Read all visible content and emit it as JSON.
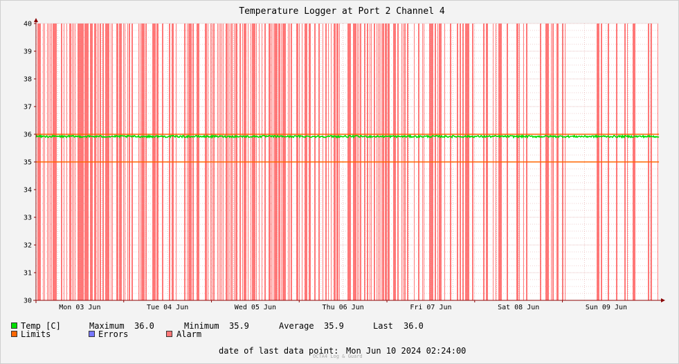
{
  "chart_data": {
    "type": "line",
    "title": "Temperature Logger at Port 2 Channel 4",
    "ylim": [
      30,
      40
    ],
    "y_ticks": [
      "30",
      "31",
      "32",
      "33",
      "34",
      "35",
      "36",
      "37",
      "38",
      "39",
      "40"
    ],
    "x_ticks": [
      "Mon 03 Jun",
      "Tue 04 Jun",
      "Wed 05 Jun",
      "Thu 06 Jun",
      "Fri 07 Jun",
      "Sat 08 Jun",
      "Sun 09 Jun"
    ],
    "x_range_days": [
      0,
      7.1
    ],
    "limits": [
      35,
      36
    ],
    "series": [
      {
        "name": "Temp [C]",
        "mean": 35.92,
        "range": [
          35.9,
          36.0
        ]
      }
    ],
    "alarm_density_by_day": [
      0.75,
      0.5,
      0.7,
      0.45,
      0.4,
      0.4,
      0.4,
      0.35
    ]
  },
  "legend": {
    "temp_label": "Temp [C]",
    "max_label": "Maximum",
    "max_value": "36.0",
    "min_label": "Minimum",
    "min_value": "35.9",
    "avg_label": "Average",
    "avg_value": "35.9",
    "last_label": "Last",
    "last_value": "36.0",
    "limits_label": "Limits",
    "errors_label": "Errors",
    "alarm_label": "Alarm"
  },
  "footer": {
    "date_label": "date of last data point:",
    "date_value": "Mon Jun 10 2024 02:24:00",
    "watermark": "OCTA4 Log & Guard"
  },
  "colors": {
    "temp": "#00dd00",
    "limits": "#ff6600",
    "errors": "#7777ff",
    "alarm": "#ff7777",
    "grid": "#e0a0a0",
    "axis": "#880000"
  }
}
